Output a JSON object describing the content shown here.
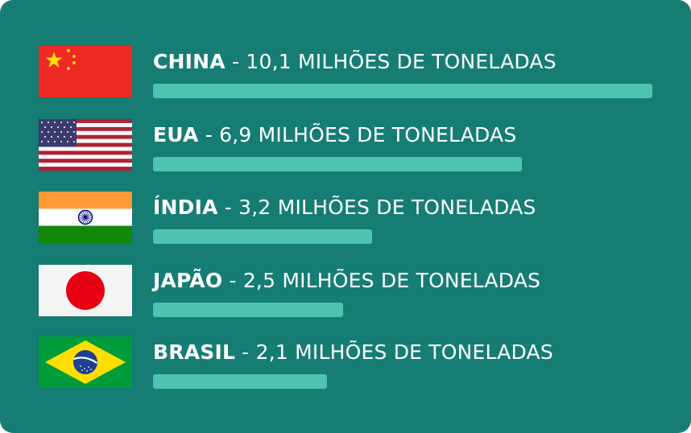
{
  "colors": {
    "background": "#167d75",
    "bar": "#4fc3b1",
    "text": "#ffffff"
  },
  "chart_data": {
    "type": "bar",
    "orientation": "horizontal",
    "unit": "MILHÕES DE TONELADAS",
    "max_reference": 10.1,
    "items": [
      {
        "country": "CHINA",
        "value": 10.1,
        "value_text": "10,1",
        "suffix": "MILHÕES DE TONELADAS",
        "flag": "china-flag-icon"
      },
      {
        "country": "EUA",
        "value": 6.9,
        "value_text": "6,9",
        "suffix": "MILHÕES DE TONELADAS",
        "flag": "usa-flag-icon"
      },
      {
        "country": "ÍNDIA",
        "value": 3.2,
        "value_text": "3,2",
        "suffix": "MILHÕES DE TONELADAS",
        "flag": "india-flag-icon"
      },
      {
        "country": "JAPÃO",
        "value": 2.5,
        "value_text": "2,5",
        "suffix": "MILHÕES DE TONELADAS",
        "flag": "japan-flag-icon"
      },
      {
        "country": "BRASIL",
        "value": 2.1,
        "value_text": "2,1",
        "suffix": "MILHÕES DE TONELADAS",
        "flag": "brazil-flag-icon"
      }
    ]
  }
}
